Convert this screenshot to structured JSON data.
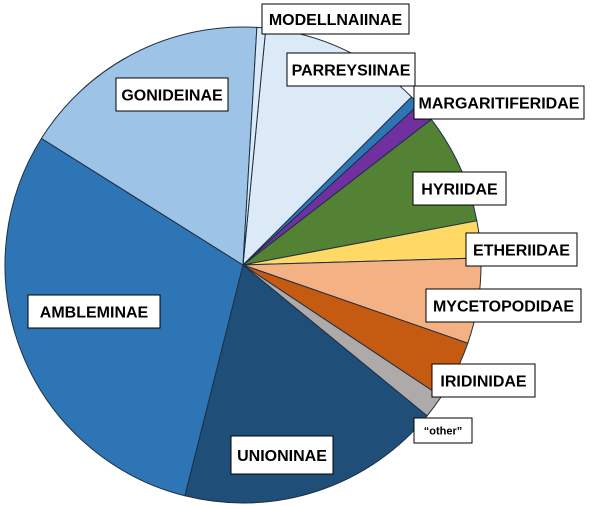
{
  "chart_data": {
    "type": "pie",
    "unit": "percent (estimated)",
    "slices": [
      {
        "label": "PARREYSIINAE",
        "value": 11.0,
        "color": "#dce9f6"
      },
      {
        "label": "",
        "value": 0.7,
        "color": "#2e75b6"
      },
      {
        "label": "MARGARITIFERIDAE",
        "value": 1.3,
        "color": "#7030a0"
      },
      {
        "label": "HYRIIDAE",
        "value": 7.5,
        "color": "#548235"
      },
      {
        "label": "ETHERIIDAE",
        "value": 2.5,
        "color": "#ffd966"
      },
      {
        "label": "MYCETOPODIDAE",
        "value": 5.8,
        "color": "#f4b183"
      },
      {
        "label": "IRIDINIDAE",
        "value": 4.0,
        "color": "#c55a11"
      },
      {
        "label": "“other”",
        "value": 1.6,
        "color": "#aeaaaa"
      },
      {
        "label": "UNIONINAE",
        "value": 18.0,
        "color": "#1f4e79"
      },
      {
        "label": "AMBLEMINAE",
        "value": 30.0,
        "color": "#2e75b6"
      },
      {
        "label": "GONIDEINAE",
        "value": 17.0,
        "color": "#9dc3e6"
      },
      {
        "label": "MODELLNAIINAE",
        "value": 0.6,
        "color": "#dce9f6"
      }
    ]
  }
}
